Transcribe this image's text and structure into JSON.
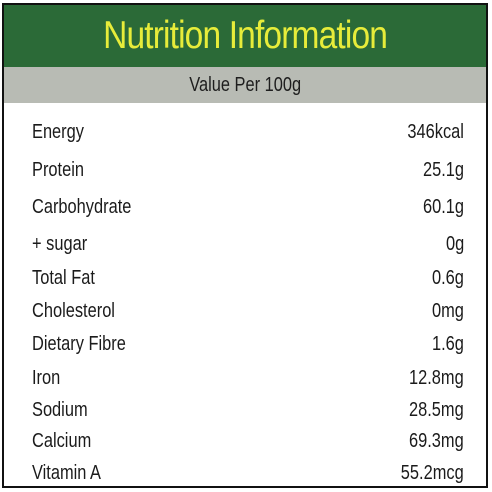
{
  "title": "Nutrition Information",
  "subtitle": "Value Per 100g",
  "colors": {
    "header": "#2b6a37",
    "title": "#e7ec3a",
    "subheader": "#b8bbb4",
    "text": "#1b1b1b"
  },
  "rows": [
    {
      "label": "Energy",
      "value": "346kcal"
    },
    {
      "label": "Protein",
      "value": "25.1g"
    },
    {
      "label": "Carbohydrate",
      "value": "60.1g"
    },
    {
      "label": "+ sugar",
      "value": "0g"
    },
    {
      "label": "Total Fat",
      "value": "0.6g"
    },
    {
      "label": "Cholesterol",
      "value": "0mg"
    },
    {
      "label": "Dietary Fibre",
      "value": "1.6g"
    },
    {
      "label": "Iron",
      "value": "12.8mg"
    },
    {
      "label": "Sodium",
      "value": "28.5mg"
    },
    {
      "label": "Calcium",
      "value": "69.3mg"
    },
    {
      "label": "Vitamin A",
      "value": "55.2mcg"
    }
  ]
}
